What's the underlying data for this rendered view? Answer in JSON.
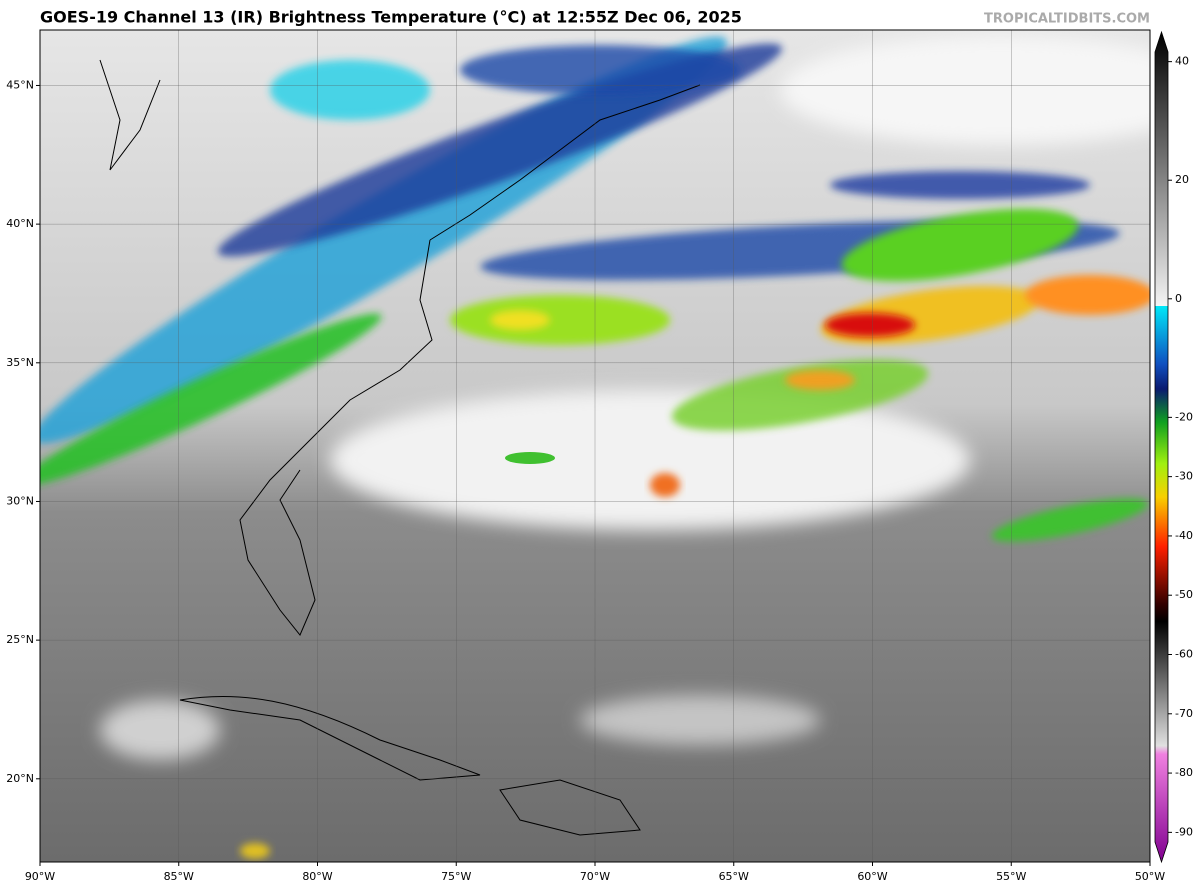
{
  "header": {
    "title": "GOES-19 Channel 13 (IR) Brightness Temperature (°C) at 12:55Z Dec 06, 2025",
    "source": "TROPICALTIDBITS.COM"
  },
  "map": {
    "xlim": [
      -90,
      -50
    ],
    "ylim": [
      17,
      47
    ],
    "lon_ticks": [
      {
        "value": -90,
        "label": "90°W"
      },
      {
        "value": -85,
        "label": "85°W"
      },
      {
        "value": -80,
        "label": "80°W"
      },
      {
        "value": -75,
        "label": "75°W"
      },
      {
        "value": -70,
        "label": "70°W"
      },
      {
        "value": -65,
        "label": "65°W"
      },
      {
        "value": -60,
        "label": "60°W"
      },
      {
        "value": -55,
        "label": "55°W"
      },
      {
        "value": -50,
        "label": "50°W"
      }
    ],
    "lat_ticks": [
      {
        "value": 20,
        "label": "20°N"
      },
      {
        "value": 25,
        "label": "25°N"
      },
      {
        "value": 30,
        "label": "30°N"
      },
      {
        "value": 35,
        "label": "35°N"
      },
      {
        "value": 40,
        "label": "40°N"
      },
      {
        "value": 45,
        "label": "45°N"
      }
    ],
    "grid": true
  },
  "colorbar": {
    "lim": [
      -95,
      45
    ],
    "ticks": [
      40,
      20,
      0,
      -20,
      -30,
      -40,
      -50,
      -60,
      -70,
      -80,
      -90
    ]
  }
}
